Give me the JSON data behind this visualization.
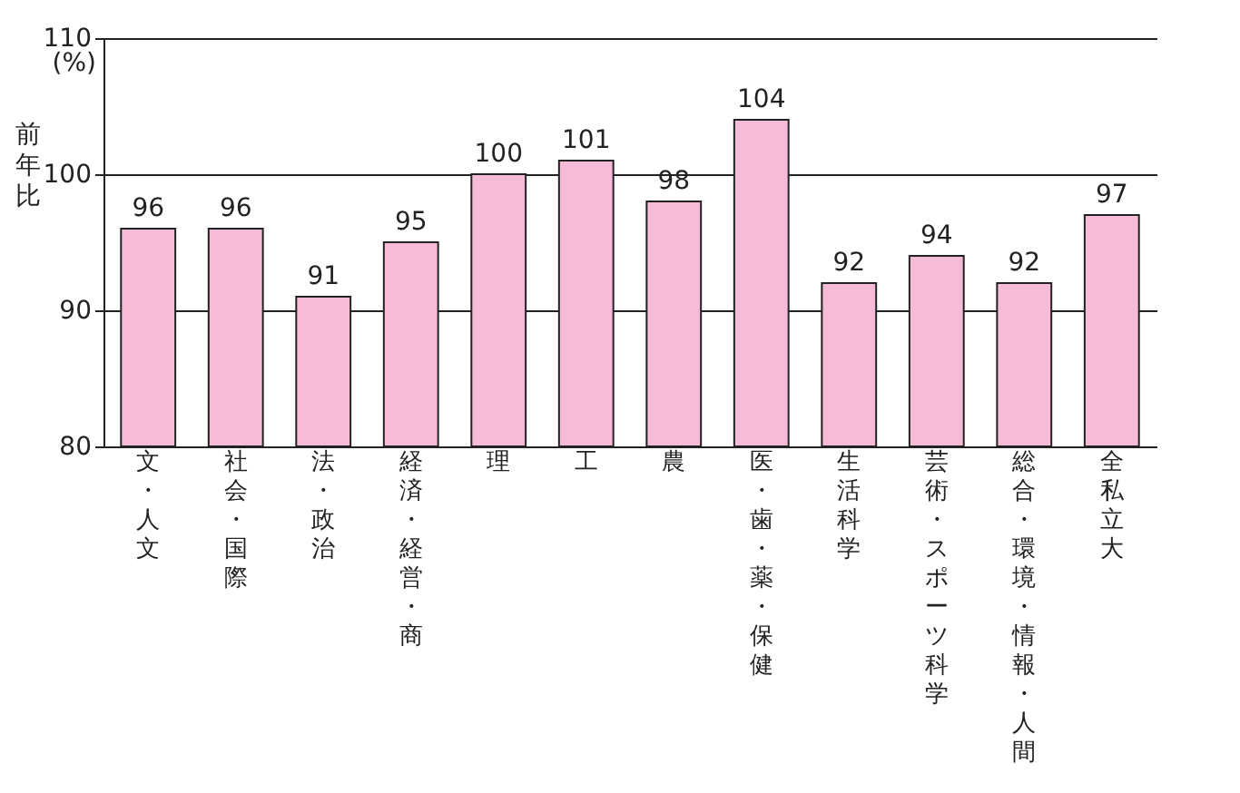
{
  "chart_data": {
    "type": "bar",
    "ylabel": "前年比",
    "annotations": [
      "(%)"
    ],
    "categories": [
      "文・人文",
      "社会・国際",
      "法・政治",
      "経済・経営・商",
      "理",
      "工",
      "農",
      "医・歯・薬・保健",
      "生活科学",
      "芸術・スポーツ科学",
      "総合・環境・情報・人間",
      "全私立大"
    ],
    "values": [
      96,
      96,
      91,
      95,
      100,
      101,
      98,
      104,
      92,
      94,
      92,
      97
    ],
    "color": "#f6bcd7",
    "ylim": [
      80,
      110
    ],
    "yticks": [
      80,
      90,
      100,
      110
    ],
    "grid": "y",
    "data_labels": true
  }
}
